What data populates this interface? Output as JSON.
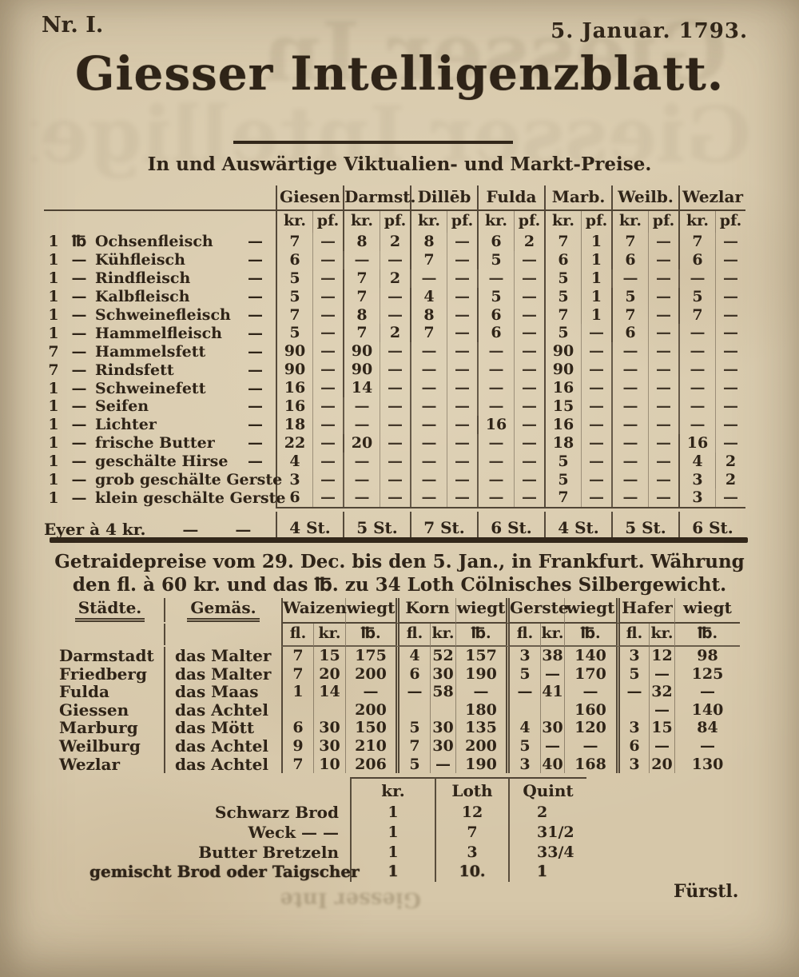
{
  "page": {
    "issue": "Nr. I.",
    "date": "5. Januar. 1793.",
    "title": "Giesser Intelligenzblatt.",
    "subtitle": "In und Auswärtige Viktualien- und Markt-Preise.",
    "signature": "Fürstl."
  },
  "market_table": {
    "cities": [
      "Giesen",
      "Darmst.",
      "Dillēb",
      "Fulda",
      "Marb.",
      "Weilb.",
      "Wezlar"
    ],
    "sub": [
      "kr.",
      "pf."
    ],
    "rows": [
      {
        "qty": "1",
        "unit": "℔",
        "item": "Ochsenfleisch",
        "trail": "—",
        "values": [
          "7",
          "—",
          "8",
          "2",
          "8",
          "—",
          "6",
          "2",
          "7",
          "1",
          "7",
          "—",
          "7",
          "—"
        ]
      },
      {
        "qty": "1",
        "unit": "—",
        "item": "Kühfleisch",
        "trail": "—",
        "values": [
          "6",
          "—",
          "—",
          "—",
          "7",
          "—",
          "5",
          "—",
          "6",
          "1",
          "6",
          "—",
          "6",
          "—"
        ]
      },
      {
        "qty": "1",
        "unit": "—",
        "item": "Rindfleisch",
        "trail": "—",
        "values": [
          "5",
          "—",
          "7",
          "2",
          "—",
          "—",
          "—",
          "—",
          "5",
          "1",
          "—",
          "—",
          "—",
          "—"
        ]
      },
      {
        "qty": "1",
        "unit": "—",
        "item": "Kalbfleisch",
        "trail": "—",
        "values": [
          "5",
          "—",
          "7",
          "—",
          "4",
          "—",
          "5",
          "—",
          "5",
          "1",
          "5",
          "—",
          "5",
          "—"
        ]
      },
      {
        "qty": "1",
        "unit": "—",
        "item": "Schweinefleisch",
        "trail": "—",
        "values": [
          "7",
          "—",
          "8",
          "—",
          "8",
          "—",
          "6",
          "—",
          "7",
          "1",
          "7",
          "—",
          "7",
          "—"
        ]
      },
      {
        "qty": "1",
        "unit": "—",
        "item": "Hammelfleisch",
        "trail": "—",
        "values": [
          "5",
          "—",
          "7",
          "2",
          "7",
          "—",
          "6",
          "—",
          "5",
          "—",
          "6",
          "—",
          "—",
          "—"
        ]
      },
      {
        "qty": "7",
        "unit": "—",
        "item": "Hammelsfett",
        "trail": "—",
        "values": [
          "90",
          "—",
          "90",
          "—",
          "—",
          "—",
          "—",
          "—",
          "90",
          "—",
          "—",
          "—",
          "—",
          "—"
        ]
      },
      {
        "qty": "7",
        "unit": "—",
        "item": "Rindsfett",
        "trail": "—",
        "values": [
          "90",
          "—",
          "90",
          "—",
          "—",
          "—",
          "—",
          "—",
          "90",
          "—",
          "—",
          "—",
          "—",
          "—"
        ]
      },
      {
        "qty": "1",
        "unit": "—",
        "item": "Schweinefett",
        "trail": "—",
        "values": [
          "16",
          "—",
          "14",
          "—",
          "—",
          "—",
          "—",
          "—",
          "16",
          "—",
          "—",
          "—",
          "—",
          "—"
        ]
      },
      {
        "qty": "1",
        "unit": "—",
        "item": "Seifen",
        "trail": "—",
        "values": [
          "16",
          "—",
          "—",
          "—",
          "—",
          "—",
          "—",
          "—",
          "15",
          "—",
          "—",
          "—",
          "—",
          "—"
        ]
      },
      {
        "qty": "1",
        "unit": "—",
        "item": "Lichter",
        "trail": "—",
        "values": [
          "18",
          "—",
          "—",
          "—",
          "—",
          "—",
          "16",
          "—",
          "16",
          "—",
          "—",
          "—",
          "—",
          "—"
        ]
      },
      {
        "qty": "1",
        "unit": "—",
        "item": "frische Butter",
        "trail": "—",
        "values": [
          "22",
          "—",
          "20",
          "—",
          "—",
          "—",
          "—",
          "—",
          "18",
          "—",
          "—",
          "—",
          "16",
          "—"
        ]
      },
      {
        "qty": "1",
        "unit": "—",
        "item": "geschälte Hirse",
        "trail": "—",
        "values": [
          "4",
          "—",
          "—",
          "—",
          "—",
          "—",
          "—",
          "—",
          "5",
          "—",
          "—",
          "—",
          "4",
          "2"
        ]
      },
      {
        "qty": "1",
        "unit": "—",
        "item": "grob geschälte Gerste",
        "trail": "",
        "values": [
          "3",
          "—",
          "—",
          "—",
          "—",
          "—",
          "—",
          "—",
          "5",
          "—",
          "—",
          "—",
          "3",
          "2"
        ]
      },
      {
        "qty": "1",
        "unit": "—",
        "item": "klein geschälte Gerste",
        "trail": "",
        "values": [
          "6",
          "—",
          "—",
          "—",
          "—",
          "—",
          "—",
          "—",
          "7",
          "—",
          "—",
          "—",
          "3",
          "—"
        ]
      }
    ],
    "eggs_row": {
      "label": "Eyer à 4 kr.",
      "dash1": "—",
      "dash2": "—",
      "values": [
        "4 St.",
        "5 St.",
        "7 St.",
        "6 St.",
        "4 St.",
        "5 St.",
        "6 St."
      ]
    }
  },
  "grain": {
    "heading_line1": "Getraidepreise vom 29. Dec. bis den 5. Jan., in Frankfurt. Währung",
    "heading_line2": "den fl. à 60 kr. und das ℔. zu 34 Loth Cölnisches Silbergewicht.",
    "table": {
      "city_header": "Städte.",
      "measure_header": "Gemäs.",
      "crops": [
        "Waizen",
        "Korn",
        "Gerste",
        "Hafer"
      ],
      "wiegt_label": "wiegt",
      "sub": [
        "fl.",
        "kr.",
        "℔."
      ],
      "rows": [
        {
          "city": "Darmstadt",
          "measure": "das Malter",
          "waizen": [
            "7",
            "15",
            "175"
          ],
          "korn": [
            "4",
            "52",
            "157"
          ],
          "gerste": [
            "3",
            "38",
            "140"
          ],
          "hafer": [
            "3",
            "12",
            "98"
          ]
        },
        {
          "city": "Friedberg",
          "measure": "das Malter",
          "waizen": [
            "7",
            "20",
            "200"
          ],
          "korn": [
            "6",
            "30",
            "190"
          ],
          "gerste": [
            "5",
            "—",
            "170"
          ],
          "hafer": [
            "5",
            "—",
            "125"
          ]
        },
        {
          "city": "Fulda",
          "measure": "das Maas",
          "waizen": [
            "1",
            "14",
            "—"
          ],
          "korn": [
            "—",
            "58",
            "—"
          ],
          "gerste": [
            "—",
            "41",
            "—"
          ],
          "hafer": [
            "—",
            "32",
            "—"
          ]
        },
        {
          "city": "Giessen",
          "measure": "das Achtel",
          "waizen": [
            "",
            "",
            "200"
          ],
          "korn": [
            "",
            "",
            "180"
          ],
          "gerste": [
            "",
            "",
            "160"
          ],
          "hafer": [
            "",
            "—",
            "140"
          ]
        },
        {
          "city": "Marburg",
          "measure": "das Mött",
          "waizen": [
            "6",
            "30",
            "150"
          ],
          "korn": [
            "5",
            "30",
            "135"
          ],
          "gerste": [
            "4",
            "30",
            "120"
          ],
          "hafer": [
            "3",
            "15",
            "84"
          ]
        },
        {
          "city": "Weilburg",
          "measure": "das Achtel",
          "waizen": [
            "9",
            "30",
            "210"
          ],
          "korn": [
            "7",
            "30",
            "200"
          ],
          "gerste": [
            "5",
            "—",
            "—"
          ],
          "hafer": [
            "6",
            "—",
            "—"
          ]
        },
        {
          "city": "Wezlar",
          "measure": "das Achtel",
          "waizen": [
            "7",
            "10",
            "206"
          ],
          "korn": [
            "5",
            "—",
            "190"
          ],
          "gerste": [
            "3",
            "40",
            "168"
          ],
          "hafer": [
            "3",
            "20",
            "130"
          ]
        }
      ]
    }
  },
  "bread_table": {
    "headers": [
      "kr.",
      "Loth",
      "Quint"
    ],
    "rows": [
      {
        "name": "Schwarz Brod",
        "kr": "1",
        "loth": "12",
        "quint": "2",
        "heavy": false
      },
      {
        "name": "Weck  —  —",
        "kr": "1",
        "loth": "7",
        "quint": "31/2",
        "heavy": false
      },
      {
        "name": "Butter Bretzeln",
        "kr": "1",
        "loth": "3",
        "quint": "33/4",
        "heavy": false
      },
      {
        "name": "gemischt Brod oder Taigscher",
        "kr": "1",
        "loth": "10.",
        "quint": "1",
        "heavy": true
      }
    ]
  }
}
